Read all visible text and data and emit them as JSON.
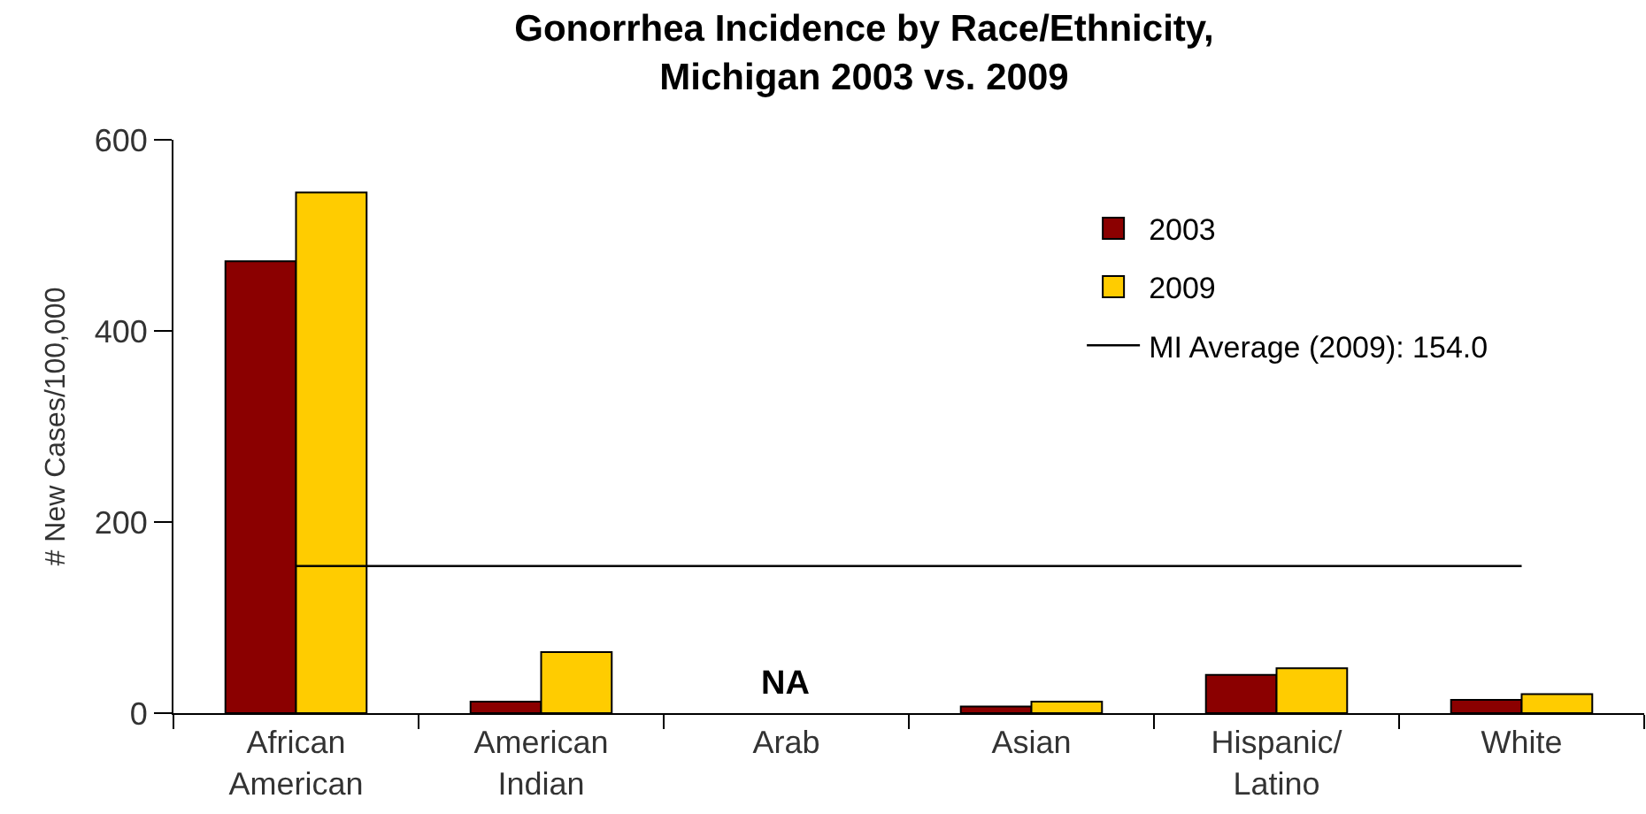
{
  "chart_data": {
    "type": "bar",
    "title": "Gonorrhea Incidence by Race/Ethnicity, Michigan 2003 vs. 2009",
    "ylabel": "# New Cases/100,000",
    "categories": [
      "African American",
      "American Indian",
      "Arab",
      "Asian",
      "Hispanic/Latino",
      "White"
    ],
    "series": [
      {
        "name": "2003",
        "color": "#8b0000",
        "values": [
          473,
          12,
          null,
          7,
          40,
          14
        ]
      },
      {
        "name": "2009",
        "color": "#ffcc00",
        "values": [
          545,
          64,
          null,
          12,
          47,
          20
        ]
      }
    ],
    "ylim": [
      0,
      600
    ],
    "yticks": [
      0,
      200,
      400,
      600
    ],
    "ref_lines": [
      {
        "axis": "y",
        "value": 154,
        "label": "MI Average (2009): 154.0",
        "color": "#000000"
      }
    ],
    "annotations": [
      "NA"
    ],
    "legend": "top right",
    "grid": false
  }
}
